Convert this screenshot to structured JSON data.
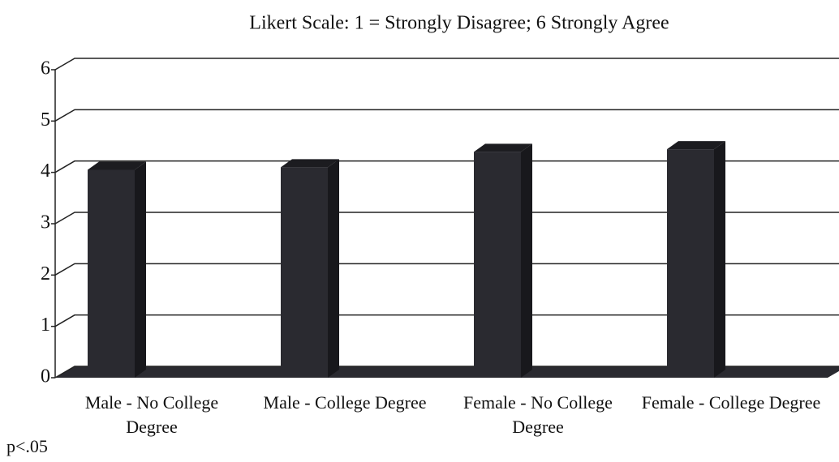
{
  "chart_data": {
    "type": "bar3d",
    "title": "Likert Scale: 1 = Strongly Disagree; 6 Strongly Agree",
    "categories": [
      "Male - No College Degree",
      "Male - College Degree",
      "Female - No College Degree",
      "Female - College Degree"
    ],
    "values": [
      4.05,
      4.1,
      4.4,
      4.45
    ],
    "color": "#2a2a30",
    "ylim": [
      0,
      6
    ],
    "yticks": [
      0,
      1,
      2,
      3,
      4,
      5,
      6
    ],
    "grid": true,
    "note": "p<.05"
  }
}
